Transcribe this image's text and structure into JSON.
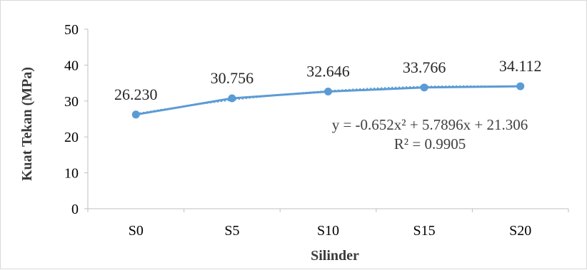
{
  "chart_data": {
    "type": "line",
    "categories": [
      "S0",
      "S5",
      "S10",
      "S15",
      "S20"
    ],
    "series": [
      {
        "values": [
          26.23,
          30.756,
          32.646,
          33.766,
          34.112
        ],
        "data_labels": [
          "26.230",
          "30.756",
          "32.646",
          "33.766",
          "34.112"
        ],
        "color": "#5b9bd5"
      }
    ],
    "trendline": {
      "type": "polynomial",
      "order": 2,
      "equation": "y = -0.652x² + 5.7896x + 21.306",
      "r_squared": "R² = 0.9905",
      "coefficients": {
        "a": -0.652,
        "b": 5.7896,
        "c": 21.306
      },
      "color": "#5b9bd5",
      "style": "dotted"
    },
    "y_ticks": [
      "0",
      "10",
      "20",
      "30",
      "40",
      "50"
    ],
    "xlabel": "Silinder",
    "ylabel": "Kuat Tekan (MPa)",
    "ylim": [
      0,
      50
    ],
    "grid": false,
    "legend": "none"
  }
}
